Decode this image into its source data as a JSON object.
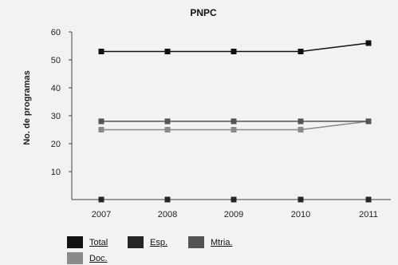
{
  "chart_data": {
    "type": "line",
    "title": "PNPC",
    "ylabel": "No. de programas",
    "xlabel": "",
    "categories": [
      "2007",
      "2008",
      "2009",
      "2010",
      "2011"
    ],
    "ylim": [
      0,
      60
    ],
    "yticks": [
      10,
      20,
      30,
      40,
      50,
      60
    ],
    "series": [
      {
        "name": "Total",
        "color": "#111111",
        "values": [
          53,
          53,
          53,
          53,
          56
        ]
      },
      {
        "name": "Esp.",
        "color": "#262626",
        "values": [
          0,
          0,
          0,
          0,
          0
        ]
      },
      {
        "name": "Mtria.",
        "color": "#545454",
        "values": [
          28,
          28,
          28,
          28,
          28
        ]
      },
      {
        "name": "Doc.",
        "color": "#8a8a8a",
        "values": [
          25,
          25,
          25,
          25,
          28
        ]
      }
    ],
    "grid": false,
    "legend": "bottom-left"
  }
}
